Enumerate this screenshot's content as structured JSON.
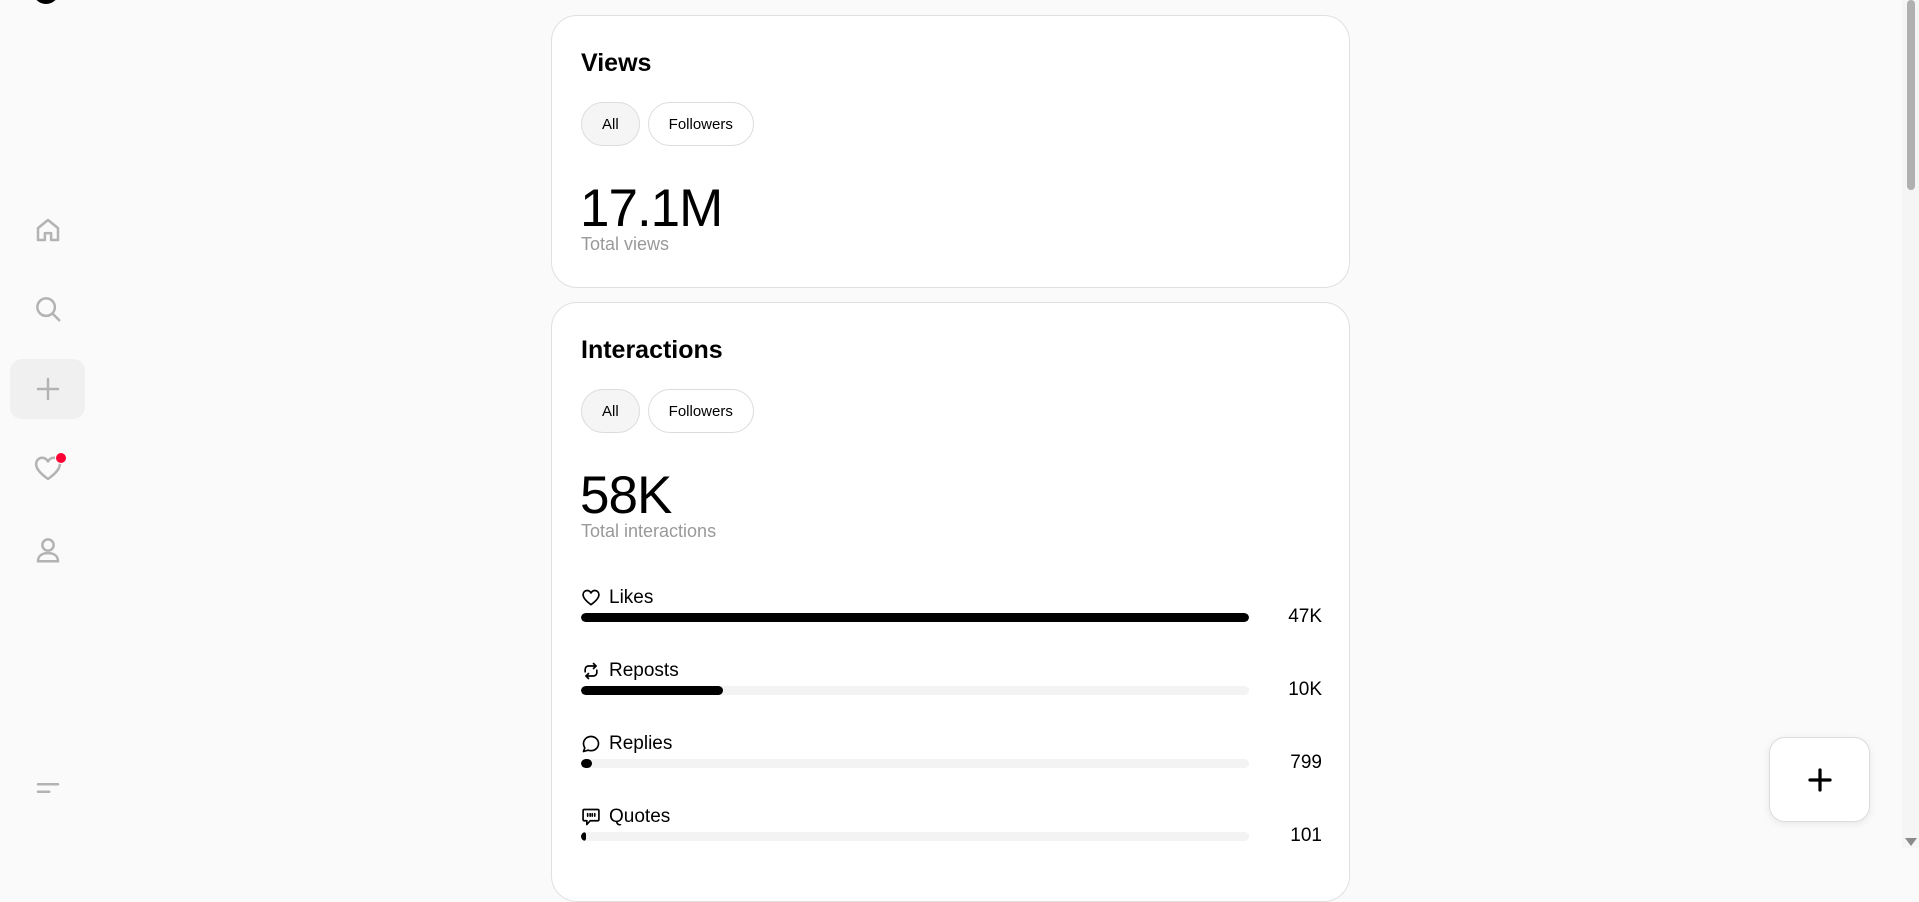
{
  "sidebar": {
    "items": [
      {
        "name": "home",
        "icon": "home-icon"
      },
      {
        "name": "search",
        "icon": "search-icon"
      },
      {
        "name": "create",
        "icon": "plus-icon"
      },
      {
        "name": "activity",
        "icon": "heart-icon"
      },
      {
        "name": "profile",
        "icon": "user-icon"
      }
    ],
    "menu_icon": "menu-icon",
    "notification_color": "#ff0034"
  },
  "views": {
    "title": "Views",
    "filters": [
      "All",
      "Followers"
    ],
    "total": "17.1M",
    "total_label": "Total views"
  },
  "interactions": {
    "title": "Interactions",
    "filters": [
      "All",
      "Followers"
    ],
    "total": "58K",
    "total_label": "Total interactions",
    "metrics": [
      {
        "label": "Likes",
        "value": "47K",
        "fraction": 1.0,
        "icon": "heart-icon"
      },
      {
        "label": "Reposts",
        "value": "10K",
        "fraction": 0.213,
        "icon": "repost-icon"
      },
      {
        "label": "Replies",
        "value": "799",
        "fraction": 0.017,
        "icon": "reply-icon"
      },
      {
        "label": "Quotes",
        "value": "101",
        "fraction": 0.002,
        "icon": "quote-icon"
      }
    ]
  },
  "fab": {
    "icon": "plus-icon"
  }
}
